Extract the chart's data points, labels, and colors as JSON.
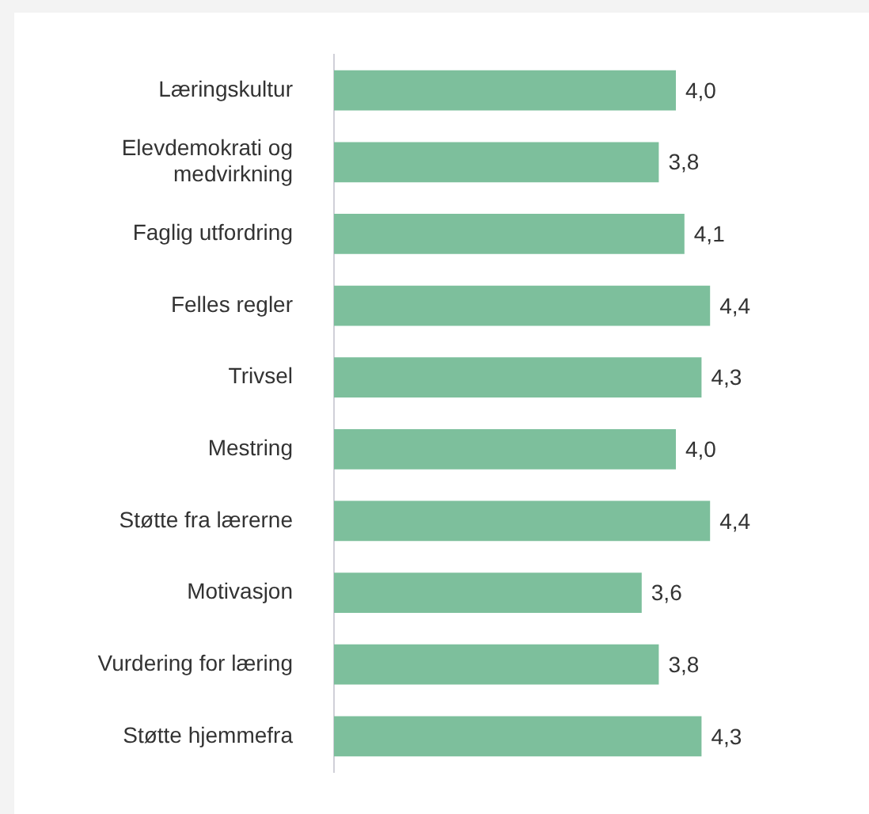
{
  "chart_data": {
    "type": "bar",
    "orientation": "horizontal",
    "categories": [
      "Læringskultur",
      "Elevdemokrati og medvirkning",
      "Faglig utfordring",
      "Felles regler",
      "Trivsel",
      "Mestring",
      "Støtte fra lærerne",
      "Motivasjon",
      "Vurdering for læring",
      "Støtte hjemmefra"
    ],
    "values": [
      4.0,
      3.8,
      4.1,
      4.4,
      4.3,
      4.0,
      4.4,
      3.6,
      3.8,
      4.3
    ],
    "value_labels": [
      "4,0",
      "3,8",
      "4,1",
      "4,4",
      "4,3",
      "4,0",
      "4,4",
      "3,6",
      "3,8",
      "4,3"
    ],
    "color": "#7dbf9c",
    "tick_labels": "y"
  }
}
